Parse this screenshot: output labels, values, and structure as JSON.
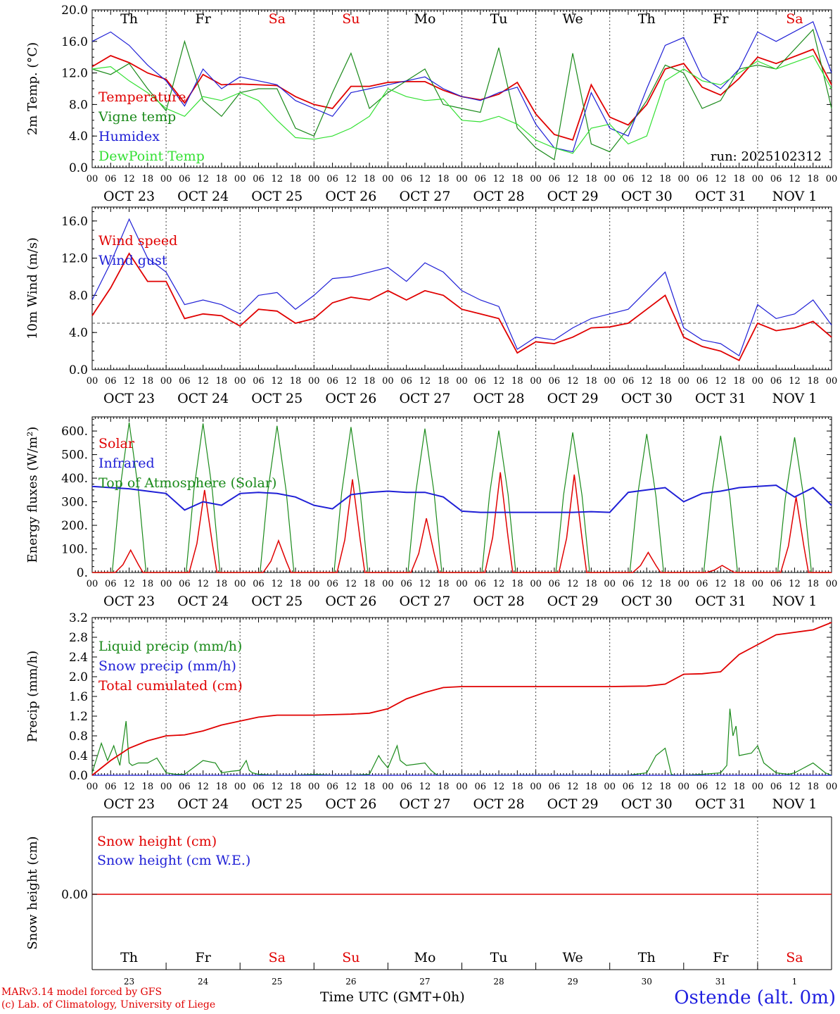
{
  "colors": {
    "red": "#e00000",
    "green": "#1a8a1a",
    "blue": "#1f1fd6",
    "lightgreen": "#33e033",
    "weekend": "#e00000",
    "location": "#2020e0"
  },
  "weekdays": [
    "Th",
    "Fr",
    "Sa",
    "Su",
    "Mo",
    "Tu",
    "We",
    "Th",
    "Fr",
    "Sa"
  ],
  "weekend_flags": [
    false,
    false,
    true,
    true,
    false,
    false,
    false,
    false,
    false,
    true
  ],
  "date_labels": [
    "OCT 23",
    "OCT 24",
    "OCT 25",
    "OCT 26",
    "OCT 27",
    "OCT 28",
    "OCT 29",
    "OCT 30",
    "OCT 31",
    "NOV  1"
  ],
  "day_numbers": [
    "23",
    "24",
    "25",
    "26",
    "27",
    "28",
    "29",
    "30",
    "31",
    "1"
  ],
  "hour_labels": [
    "00",
    "06",
    "12",
    "18"
  ],
  "footer": {
    "model": "MARv3.14 model forced by GFS",
    "credit": "(c) Lab. of Climatology, University of Liege",
    "time_label": "Time UTC (GMT+0h)",
    "location": "Ostende (alt. 0m)"
  },
  "chart_data": [
    {
      "type": "line",
      "ylabel": "2m Temp. (°C)",
      "ylim": [
        0,
        20
      ],
      "yticks": [
        "0.0",
        "4.0",
        "8.0",
        "12.0",
        "16.0",
        "20.0"
      ],
      "annotation": "run: 2025102312",
      "x_unit": "hours since OCT 23 00 UTC",
      "series": [
        {
          "name": "Temperature",
          "color": "red",
          "x": [
            0,
            6,
            12,
            18,
            24,
            30,
            36,
            42,
            48,
            54,
            60,
            66,
            72,
            78,
            84,
            90,
            96,
            102,
            108,
            114,
            120,
            126,
            132,
            138,
            144,
            150,
            156,
            162,
            168,
            174,
            180,
            186,
            192,
            198,
            204,
            210,
            216,
            222,
            234,
            240
          ],
          "values": [
            12.8,
            14.2,
            13.3,
            12.0,
            11.2,
            8.2,
            11.8,
            10.5,
            10.6,
            10.5,
            10.4,
            9.0,
            8.0,
            7.5,
            10.3,
            10.3,
            10.8,
            10.9,
            10.9,
            9.8,
            9.0,
            8.6,
            9.3,
            10.8,
            6.8,
            4.2,
            3.5,
            10.5,
            6.4,
            5.4,
            8.0,
            12.5,
            13.2,
            10.2,
            9.2,
            11.3,
            14.0,
            13.2,
            15.0,
            10.5
          ]
        },
        {
          "name": "Vigne temp",
          "color": "green",
          "x": [
            0,
            6,
            12,
            18,
            24,
            30,
            36,
            42,
            48,
            54,
            60,
            66,
            72,
            78,
            84,
            90,
            96,
            102,
            108,
            114,
            120,
            126,
            132,
            138,
            144,
            150,
            156,
            162,
            168,
            174,
            180,
            186,
            192,
            198,
            204,
            210,
            216,
            222,
            234,
            240
          ],
          "values": [
            12.5,
            11.8,
            13.2,
            10.0,
            7.2,
            16.0,
            8.5,
            6.5,
            9.5,
            10.0,
            10.0,
            5.0,
            4.0,
            9.5,
            14.5,
            7.5,
            9.5,
            11.0,
            12.5,
            8.0,
            7.5,
            7.0,
            15.2,
            5.0,
            2.5,
            1.0,
            14.5,
            3.0,
            2.0,
            5.0,
            8.5,
            13.0,
            12.0,
            7.5,
            8.5,
            12.5,
            13.0,
            12.5,
            17.5,
            7.5
          ]
        },
        {
          "name": "Humidex",
          "color": "blue",
          "x": [
            0,
            6,
            12,
            18,
            24,
            30,
            36,
            42,
            48,
            54,
            60,
            66,
            72,
            78,
            84,
            90,
            96,
            102,
            108,
            114,
            120,
            126,
            132,
            138,
            144,
            150,
            156,
            162,
            168,
            174,
            180,
            186,
            192,
            198,
            204,
            210,
            216,
            222,
            234,
            240
          ],
          "values": [
            16.0,
            17.2,
            15.5,
            13.0,
            11.0,
            7.8,
            12.5,
            10.0,
            11.5,
            11.0,
            10.5,
            8.5,
            7.5,
            6.5,
            9.5,
            10.0,
            10.5,
            11.0,
            11.5,
            10.0,
            9.0,
            8.5,
            9.5,
            10.2,
            5.5,
            2.5,
            2.0,
            9.5,
            5.0,
            4.0,
            10.0,
            15.5,
            16.5,
            11.5,
            10.0,
            12.5,
            17.2,
            16.0,
            18.5,
            12.0
          ]
        },
        {
          "name": "DewPoint Temp",
          "color": "lightgreen",
          "x": [
            0,
            6,
            12,
            18,
            24,
            30,
            36,
            42,
            48,
            54,
            60,
            66,
            72,
            78,
            84,
            90,
            96,
            102,
            108,
            114,
            120,
            126,
            132,
            138,
            144,
            150,
            156,
            162,
            168,
            174,
            180,
            186,
            192,
            198,
            204,
            210,
            216,
            222,
            234,
            240
          ],
          "values": [
            12.5,
            12.8,
            11.0,
            9.5,
            7.5,
            6.5,
            9.0,
            8.5,
            9.5,
            8.5,
            6.0,
            3.8,
            3.6,
            4.0,
            5.0,
            6.5,
            10.0,
            9.0,
            8.5,
            8.7,
            6.0,
            5.8,
            6.5,
            5.5,
            3.5,
            2.5,
            1.8,
            5.0,
            5.5,
            3.0,
            4.0,
            11.0,
            12.5,
            11.0,
            10.5,
            12.0,
            13.5,
            12.5,
            14.2,
            10.0
          ]
        }
      ]
    },
    {
      "type": "line",
      "ylabel": "10m Wind (m/s)",
      "ylim": [
        0,
        17.5
      ],
      "yticks": [
        "0.0",
        "4.0",
        "8.0",
        "12.0",
        "16.0"
      ],
      "reference_line": 5,
      "x_unit": "hours since OCT 23 00 UTC",
      "series": [
        {
          "name": "Wind speed",
          "color": "red",
          "x": [
            0,
            6,
            12,
            18,
            24,
            30,
            36,
            42,
            48,
            54,
            60,
            66,
            72,
            78,
            84,
            90,
            96,
            102,
            108,
            114,
            120,
            126,
            132,
            138,
            144,
            150,
            156,
            162,
            168,
            174,
            180,
            186,
            192,
            198,
            204,
            210,
            216,
            222,
            228,
            234,
            240
          ],
          "values": [
            5.8,
            8.8,
            12.5,
            9.5,
            9.5,
            5.5,
            6.0,
            5.8,
            4.7,
            6.5,
            6.3,
            5.0,
            5.5,
            7.2,
            7.8,
            7.5,
            8.5,
            7.5,
            8.5,
            8.0,
            6.5,
            6.0,
            5.5,
            1.8,
            3.0,
            2.8,
            3.5,
            4.5,
            4.6,
            5.0,
            6.5,
            8.0,
            3.5,
            2.5,
            2.0,
            1.0,
            5.0,
            4.2,
            4.5,
            5.2,
            3.5
          ]
        },
        {
          "name": "Wind gust",
          "color": "blue",
          "x": [
            0,
            6,
            12,
            18,
            24,
            30,
            36,
            42,
            48,
            54,
            60,
            66,
            72,
            78,
            84,
            90,
            96,
            102,
            108,
            114,
            120,
            126,
            132,
            138,
            144,
            150,
            156,
            162,
            168,
            174,
            180,
            186,
            192,
            198,
            204,
            210,
            216,
            222,
            228,
            234,
            240
          ],
          "values": [
            7.5,
            11.5,
            16.2,
            12.0,
            10.5,
            7.0,
            7.5,
            7.0,
            6.0,
            8.0,
            8.3,
            6.5,
            8.0,
            9.8,
            10.0,
            10.5,
            11.0,
            9.5,
            11.5,
            10.5,
            8.5,
            7.5,
            6.8,
            2.2,
            3.5,
            3.2,
            4.5,
            5.5,
            6.0,
            6.5,
            8.5,
            10.5,
            4.5,
            3.2,
            2.8,
            1.5,
            7.0,
            5.5,
            6.0,
            7.5,
            4.8
          ]
        }
      ]
    },
    {
      "type": "line",
      "ylabel": "Energy fluxes (W/m²)",
      "ylim": [
        0,
        660
      ],
      "yticks": [
        "0.",
        "100.",
        "200.",
        "300.",
        "400.",
        "500.",
        "600."
      ],
      "x_unit": "hours since OCT 23 00 UTC",
      "toa_peaks": [
        636,
        632,
        622,
        617,
        610,
        602,
        594,
        587,
        580,
        573
      ],
      "solar_peaks": [
        95,
        350,
        135,
        395,
        230,
        425,
        415,
        85,
        30,
        320
      ],
      "series": [
        {
          "name": "Solar",
          "color": "red",
          "note": "daily peak values listed in solar_peaks, zero at night"
        },
        {
          "name": "Infrared",
          "color": "blue",
          "x": [
            0,
            6,
            12,
            18,
            24,
            30,
            36,
            42,
            48,
            54,
            60,
            66,
            72,
            78,
            84,
            90,
            96,
            102,
            108,
            114,
            120,
            126,
            132,
            138,
            144,
            150,
            156,
            162,
            168,
            174,
            180,
            186,
            192,
            198,
            204,
            210,
            216,
            222,
            228,
            234,
            240
          ],
          "values": [
            365,
            360,
            355,
            345,
            335,
            265,
            300,
            285,
            335,
            340,
            335,
            320,
            285,
            270,
            330,
            340,
            345,
            340,
            340,
            320,
            260,
            255,
            255,
            255,
            255,
            255,
            255,
            258,
            255,
            340,
            350,
            360,
            300,
            335,
            345,
            360,
            365,
            370,
            320,
            360,
            285
          ]
        },
        {
          "name": "Top of Atmosphere (Solar)",
          "color": "green",
          "note": "daily peak values listed in toa_peaks, zero at night"
        }
      ]
    },
    {
      "type": "line",
      "ylabel": "Precip (mm/h)",
      "ylim": [
        0,
        3.2
      ],
      "yticks": [
        "0.0",
        "0.4",
        "0.8",
        "1.2",
        "1.6",
        "2.0",
        "2.4",
        "2.8",
        "3.2"
      ],
      "x_unit": "hours since OCT 23 00 UTC",
      "series": [
        {
          "name": "Liquid precip (mm/h)",
          "color": "green",
          "x": [
            0,
            3,
            5,
            7,
            9,
            11,
            12,
            13,
            15,
            18,
            21,
            24,
            27,
            30,
            36,
            40,
            42,
            45,
            48,
            50,
            51,
            52,
            54,
            60,
            66,
            72,
            78,
            84,
            90,
            93,
            94,
            96,
            99,
            100,
            102,
            108,
            110,
            112,
            114,
            120,
            126,
            132,
            138,
            144,
            150,
            156,
            162,
            168,
            174,
            180,
            183,
            186,
            188,
            189,
            192,
            198,
            204,
            206,
            207,
            208,
            209,
            210,
            214,
            216,
            218,
            222,
            226,
            228,
            234,
            238,
            240
          ],
          "values": [
            0.05,
            0.65,
            0.3,
            0.6,
            0.2,
            1.1,
            0.25,
            0.2,
            0.25,
            0.25,
            0.35,
            0.05,
            0.02,
            0.02,
            0.3,
            0.25,
            0.05,
            0.08,
            0.1,
            0.3,
            0.1,
            0.05,
            0.02,
            0.0,
            0.0,
            0.02,
            0.0,
            0.0,
            0.02,
            0.4,
            0.3,
            0.15,
            0.6,
            0.3,
            0.2,
            0.25,
            0.1,
            0.0,
            0.0,
            0.0,
            0.0,
            0.0,
            0.0,
            0.0,
            0.0,
            0.0,
            0.0,
            0.0,
            0.0,
            0.05,
            0.4,
            0.55,
            0.02,
            0.0,
            0.0,
            0.02,
            0.05,
            0.2,
            1.35,
            0.8,
            1.0,
            0.4,
            0.45,
            0.6,
            0.25,
            0.05,
            0.02,
            0.05,
            0.25,
            0.05,
            0.0
          ]
        },
        {
          "name": "Snow precip (mm/h)",
          "color": "blue",
          "x": [
            0,
            240
          ],
          "values": [
            0,
            0
          ]
        },
        {
          "name": "Total cumulated (cm)",
          "color": "red",
          "x": [
            0,
            6,
            12,
            18,
            24,
            30,
            36,
            42,
            48,
            54,
            60,
            66,
            72,
            78,
            84,
            90,
            96,
            102,
            108,
            114,
            120,
            132,
            144,
            156,
            168,
            180,
            186,
            192,
            198,
            204,
            210,
            216,
            222,
            228,
            234,
            240
          ],
          "values": [
            0.0,
            0.3,
            0.55,
            0.7,
            0.8,
            0.82,
            0.9,
            1.02,
            1.1,
            1.18,
            1.22,
            1.22,
            1.22,
            1.23,
            1.24,
            1.26,
            1.35,
            1.55,
            1.68,
            1.78,
            1.8,
            1.8,
            1.8,
            1.8,
            1.8,
            1.81,
            1.85,
            2.05,
            2.06,
            2.1,
            2.45,
            2.65,
            2.85,
            2.9,
            2.95,
            3.1
          ]
        }
      ]
    },
    {
      "type": "line",
      "ylabel": "Snow height (cm)",
      "yticks": [
        "0.00"
      ],
      "x_unit": "hours since OCT 23 00 UTC",
      "series": [
        {
          "name": "Snow height (cm)",
          "color": "red",
          "x": [
            0,
            240
          ],
          "values": [
            0,
            0
          ]
        },
        {
          "name": "Snow height (cm W.E.)",
          "color": "blue",
          "x": [
            0,
            240
          ],
          "values": [
            0,
            0
          ]
        }
      ]
    }
  ]
}
